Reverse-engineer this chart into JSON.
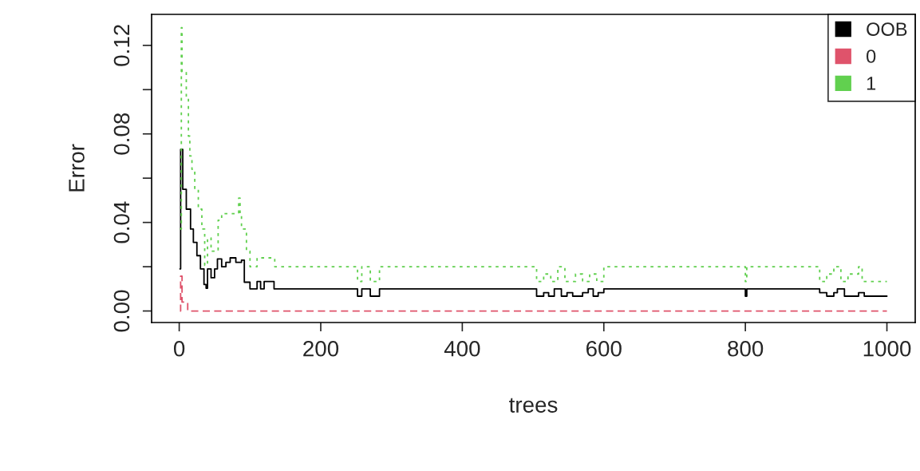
{
  "chart_data": {
    "type": "step",
    "xlabel": "trees",
    "ylabel": "Error",
    "xlim": [
      -39,
      1040
    ],
    "ylim": [
      -0.0052,
      0.134
    ],
    "xticks": [
      0,
      200,
      400,
      600,
      800,
      1000
    ],
    "yticks": [
      {
        "value": 0,
        "label": "0.00"
      },
      {
        "value": 0.02,
        "label": null
      },
      {
        "value": 0.04,
        "label": "0.04"
      },
      {
        "value": 0.06,
        "label": null
      },
      {
        "value": 0.08,
        "label": "0.08"
      },
      {
        "value": 0.1,
        "label": null
      },
      {
        "value": 0.12,
        "label": "0.12"
      }
    ],
    "grid": false,
    "legend": "top right",
    "marker": "none",
    "series": [
      {
        "name": "OOB",
        "color": "#000000",
        "line_style": "solid",
        "x": [
          1,
          2,
          5,
          10,
          16,
          20,
          25,
          30,
          35,
          38,
          40,
          45,
          50,
          54,
          60,
          66,
          72,
          80,
          88,
          92,
          100,
          110,
          115,
          120,
          130,
          134,
          252,
          258,
          270,
          283,
          505,
          515,
          522,
          530,
          540,
          548,
          556,
          570,
          578,
          585,
          592,
          600,
          800,
          802,
          905,
          915,
          925,
          930,
          940,
          955,
          960,
          968,
          975,
          1000
        ],
        "values": [
          0.019,
          0.073,
          0.055,
          0.046,
          0.037,
          0.031,
          0.025,
          0.019,
          0.012,
          0.0103,
          0.019,
          0.015,
          0.019,
          0.0235,
          0.02,
          0.022,
          0.024,
          0.022,
          0.023,
          0.013,
          0.01,
          0.0133,
          0.01,
          0.0133,
          0.0133,
          0.01,
          0.0067,
          0.01,
          0.0067,
          0.01,
          0.0067,
          0.0083,
          0.0067,
          0.01,
          0.0067,
          0.0083,
          0.0067,
          0.0083,
          0.01,
          0.0067,
          0.0083,
          0.01,
          0.0067,
          0.01,
          0.0083,
          0.0067,
          0.0083,
          0.01,
          0.0067,
          0.0067,
          0.0083,
          0.0067,
          0.0067,
          0.0067
        ]
      },
      {
        "name": "0",
        "color": "#df536b",
        "line_style": "dashed",
        "x": [
          1,
          2,
          4,
          10,
          12,
          1000
        ],
        "values": [
          0,
          0.0157,
          0.004,
          0.004,
          0,
          0
        ]
      },
      {
        "name": "1",
        "color": "#61d04f",
        "line_style": "dotted",
        "x": [
          1,
          3,
          4,
          10,
          13,
          15,
          18,
          22,
          27,
          32,
          36,
          40,
          45,
          55,
          60,
          84,
          86,
          88,
          95,
          100,
          110,
          130,
          135,
          252,
          258,
          270,
          283,
          505,
          515,
          525,
          535,
          545,
          560,
          570,
          580,
          590,
          600,
          800,
          802,
          905,
          915,
          925,
          935,
          945,
          960,
          965,
          975,
          1000
        ],
        "values": [
          0.037,
          0.128,
          0.108,
          0.0965,
          0.079,
          0.07,
          0.064,
          0.055,
          0.046,
          0.037,
          0.0206,
          0.033,
          0.027,
          0.041,
          0.044,
          0.051,
          0.044,
          0.037,
          0.027,
          0.02,
          0.024,
          0.024,
          0.02,
          0.0133,
          0.02,
          0.0133,
          0.02,
          0.0133,
          0.0167,
          0.0133,
          0.02,
          0.0133,
          0.0167,
          0.0133,
          0.0167,
          0.0133,
          0.02,
          0.0133,
          0.02,
          0.0133,
          0.0167,
          0.02,
          0.0133,
          0.0167,
          0.02,
          0.0133,
          0.0133,
          0.0133
        ]
      }
    ]
  }
}
